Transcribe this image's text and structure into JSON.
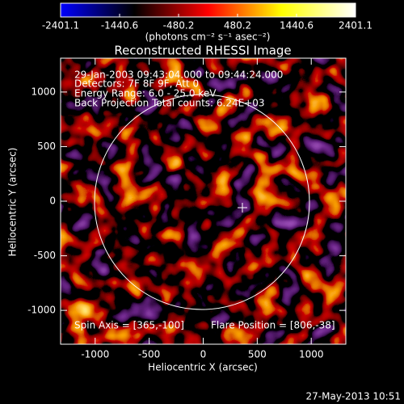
{
  "chart_data": {
    "type": "image",
    "title": "Reconstructed RHESSI Image",
    "x_label": "Heliocentric X (arcsec)",
    "y_label": "Heliocentric Y (arcsec)",
    "xlim": [
      -1320,
      1320
    ],
    "ylim": [
      -1310,
      1310
    ],
    "xticks": [
      -1000,
      -500,
      0,
      500,
      1000
    ],
    "yticks": [
      -1000,
      -500,
      0,
      500,
      1000
    ],
    "colorbar": {
      "label": "(photons cm⁻² s⁻¹ asec⁻²)",
      "clim": [
        -2401.1,
        2401.1
      ],
      "ticks": [
        -2401.1,
        -1440.6,
        -480.2,
        480.2,
        1440.6,
        2401.1
      ],
      "colors": [
        "#0000ff",
        "#000000",
        "#ff0000",
        "#ffff00",
        "#ffffff"
      ]
    },
    "annotations": [
      "29-Jan-2003 09:43:04.000 to 09:44:24.000",
      "Detectors: 7F 8F 9F, Att 0",
      "Energy Range: 6.0 - 25.0 keV",
      "Back Projection    Total counts: 6.24E+03"
    ],
    "spin_axis": "Spin Axis = [365,-100]",
    "flare_position": "Flare Position = [806,-38]",
    "footer": "27-May-2013 10:51"
  }
}
